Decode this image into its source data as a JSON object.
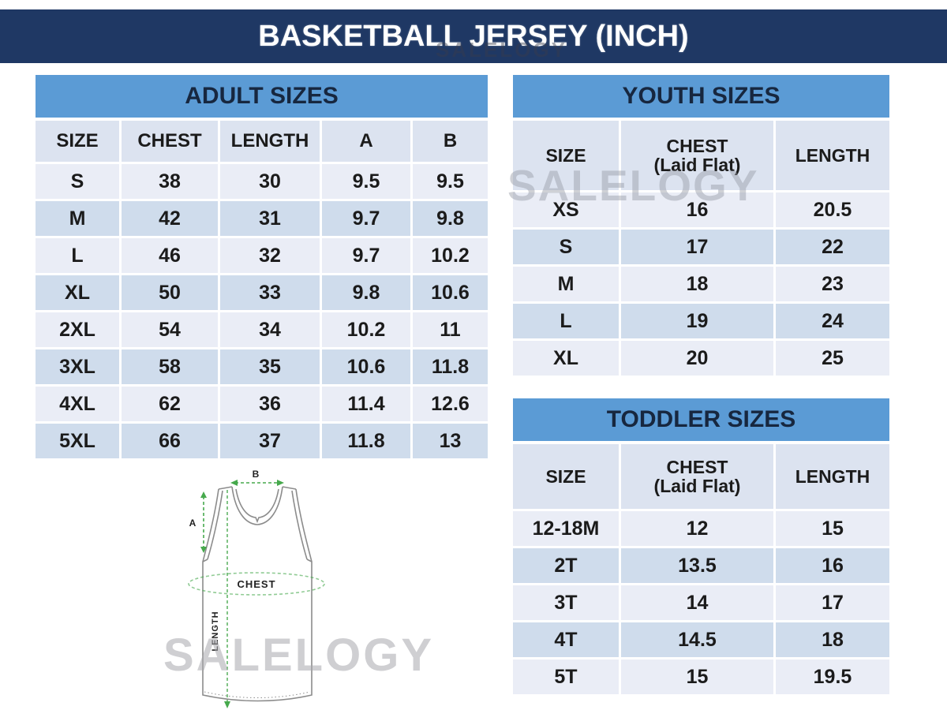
{
  "title": "BASKETBALL JERSEY (INCH)",
  "watermark": "SALELOGY",
  "colors": {
    "navy": "#1f3864",
    "banner_blue": "#5b9bd5",
    "header_row": "#dce3f0",
    "row_light": "#eaedf6",
    "row_dark": "#cfdcec",
    "green": "#46a94c"
  },
  "tables": {
    "adult": {
      "title": "ADULT SIZES",
      "columns": [
        "SIZE",
        "CHEST",
        "LENGTH",
        "A",
        "B"
      ],
      "rows": [
        [
          "S",
          38,
          30,
          9.5,
          9.5
        ],
        [
          "M",
          42,
          31,
          9.7,
          9.8
        ],
        [
          "L",
          46,
          32,
          9.7,
          10.2
        ],
        [
          "XL",
          50,
          33,
          9.8,
          10.6
        ],
        [
          "2XL",
          54,
          34,
          10.2,
          11
        ],
        [
          "3XL",
          58,
          35,
          10.6,
          11.8
        ],
        [
          "4XL",
          62,
          36,
          11.4,
          12.6
        ],
        [
          "5XL",
          66,
          37,
          11.8,
          13
        ]
      ]
    },
    "youth": {
      "title": "YOUTH SIZES",
      "columns": [
        "SIZE",
        "CHEST\n(Laid Flat)",
        "LENGTH"
      ],
      "rows": [
        [
          "XS",
          16,
          20.5
        ],
        [
          "S",
          17,
          22
        ],
        [
          "M",
          18,
          23
        ],
        [
          "L",
          19,
          24
        ],
        [
          "XL",
          20,
          25
        ]
      ]
    },
    "toddler": {
      "title": "TODDLER SIZES",
      "columns": [
        "SIZE",
        "CHEST\n(Laid Flat)",
        "LENGTH"
      ],
      "rows": [
        [
          "12-18M",
          12,
          15
        ],
        [
          "2T",
          13.5,
          16
        ],
        [
          "3T",
          14,
          17
        ],
        [
          "4T",
          14.5,
          18
        ],
        [
          "5T",
          15,
          19.5
        ]
      ]
    }
  },
  "diagram": {
    "label_a": "A",
    "label_b": "B",
    "label_chest": "CHEST",
    "label_length": "LENGTH"
  }
}
